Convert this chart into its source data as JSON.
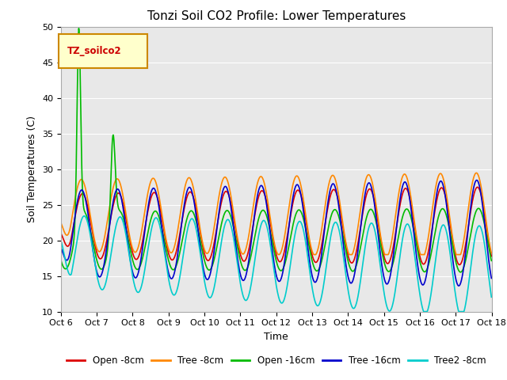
{
  "title": "Tonzi Soil CO2 Profile: Lower Temperatures",
  "xlabel": "Time",
  "ylabel": "Soil Temperatures (C)",
  "ylim": [
    10,
    50
  ],
  "yticks": [
    10,
    15,
    20,
    25,
    30,
    35,
    40,
    45,
    50
  ],
  "xtick_labels": [
    "Oct 6",
    "Oct 7",
    "Oct 8",
    "Oct 9",
    "Oct 10",
    "Oct 11",
    "Oct 12",
    "Oct 13",
    "Oct 14",
    "Oct 15",
    "Oct 16",
    "Oct 17",
    "Oct 18"
  ],
  "fig_bg_color": "#ffffff",
  "plot_bg_color": "#e8e8e8",
  "legend_label": "TZ_soilco2",
  "series_order": [
    "Open -8cm",
    "Tree -8cm",
    "Open -16cm",
    "Tree -16cm",
    "Tree2 -8cm"
  ],
  "series": {
    "Open -8cm": {
      "color": "#dd0000",
      "lw": 1.2
    },
    "Tree -8cm": {
      "color": "#ff8800",
      "lw": 1.2
    },
    "Open -16cm": {
      "color": "#00bb00",
      "lw": 1.2
    },
    "Tree -16cm": {
      "color": "#0000cc",
      "lw": 1.2
    },
    "Tree2 -8cm": {
      "color": "#00cccc",
      "lw": 1.2
    }
  },
  "num_days": 12,
  "points_per_day": 96,
  "title_fontsize": 11,
  "axis_fontsize": 9,
  "tick_fontsize": 8
}
